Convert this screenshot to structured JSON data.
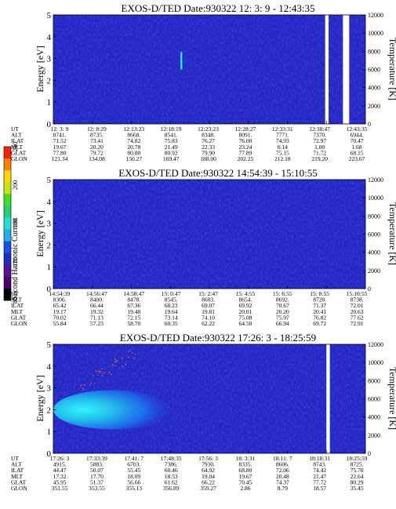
{
  "chart_data": {
    "type": "heatmap",
    "colorbar": {
      "label": "Second Harmonic Current",
      "ticks": [
        "80",
        "120",
        "160",
        "200",
        "240"
      ],
      "range": [
        80,
        240
      ],
      "colors": [
        "#000000",
        "#4b0070",
        "#5a0f96",
        "#1e2cc8",
        "#1a4fe8",
        "#1fb0e8",
        "#22e0d8",
        "#25d070",
        "#3fe020",
        "#c8e610",
        "#ffd700",
        "#ff8000",
        "#ff2000"
      ]
    },
    "panels": [
      {
        "title": "EXOS-D/TED   Date:930322  12: 3: 9 - 12:43:35",
        "ylabel": "Energy [eV]",
        "y2label": "Temperature [K]",
        "ylim": [
          0,
          5
        ],
        "y2lim": [
          0,
          12000
        ],
        "yticks": [
          "0",
          "1",
          "2",
          "3",
          "4",
          "5"
        ],
        "y2ticks": [
          "0",
          "2000",
          "4000",
          "6000",
          "8000",
          "10000",
          "12000"
        ],
        "gaps": [
          [
            0.871,
            0.882
          ],
          [
            0.928,
            0.948
          ]
        ],
        "features": [
          {
            "kind": "spike",
            "x": 0.41,
            "y0": 2.5,
            "y1": 3.3,
            "value": 190
          }
        ],
        "background_value": 124,
        "rows": [
          {
            "name": "UT",
            "values": [
              "12: 3: 9",
              "12: 8:29",
              "12:13:23",
              "12:18:19",
              "12:23:23",
              "12:28:27",
              "12:33:31",
              "12:38:47",
              "12:43:35"
            ]
          },
          {
            "name": "ALT",
            "values": [
              "8741.",
              "8735.",
              "8668.",
              "8541.",
              "8348.",
              "8091.",
              "7771.",
              "7370.",
              "6944."
            ]
          },
          {
            "name": "ILAT",
            "values": [
              "71.52",
              "73.41",
              "74.82",
              "75.83",
              "76.27",
              "76.00",
              "74.93",
              "72.97",
              "70.47"
            ]
          },
          {
            "name": "MLT",
            "values": [
              "19.67",
              "20.20",
              "20.78",
              "21.49",
              "22.33",
              "23.24",
              "0.14",
              "1.00",
              "1.68"
            ]
          },
          {
            "name": "GLAT",
            "values": [
              "77.80",
              "79.72",
              "80.80",
              "80.92",
              "79.90",
              "77.89",
              "75.15",
              "71.72",
              "68.15"
            ]
          },
          {
            "name": "GLON",
            "values": [
              "121.34",
              "134.08",
              "150.27",
              "169.47",
              "188.00",
              "202.25",
              "212.18",
              "219.20",
              "223.67"
            ]
          }
        ]
      },
      {
        "title": "EXOS-D/TED   Date:930322  14:54:39 - 15:10:55",
        "ylabel": "Energy [eV]",
        "y2label": "Temperature [K]",
        "ylim": [
          0,
          5
        ],
        "y2lim": [
          0,
          12000
        ],
        "yticks": [
          "0",
          "1",
          "2",
          "3",
          "4",
          "5"
        ],
        "y2ticks": [
          "0",
          "2000",
          "4000",
          "6000",
          "8000",
          "10000",
          "12000"
        ],
        "gaps": [],
        "features": [],
        "background_value": 124,
        "rows": [
          {
            "name": "UT",
            "values": [
              "14:54:39",
              "14:56:47",
              "14:58:47",
              "15: 0:47",
              "15: 2:47",
              "15: 4:55",
              "15: 6:55",
              "15: 8:55",
              "15:10:55"
            ]
          },
          {
            "name": "ALT",
            "values": [
              "8306.",
              "8400.",
              "8478.",
              "8545.",
              "8603.",
              "8654.",
              "8692.",
              "8720.",
              "8738."
            ]
          },
          {
            "name": "ILAT",
            "values": [
              "65.42",
              "66.44",
              "67.36",
              "68.23",
              "69.07",
              "69.92",
              "70.67",
              "71.37",
              "72.01"
            ]
          },
          {
            "name": "MLT",
            "values": [
              "19.17",
              "19.32",
              "19.48",
              "19.64",
              "19.81",
              "20.01",
              "20.20",
              "20.41",
              "20.63"
            ]
          },
          {
            "name": "GLAT",
            "values": [
              "70.02",
              "71.13",
              "72.15",
              "73.14",
              "74.10",
              "75.08",
              "75.97",
              "76.82",
              "77.62"
            ]
          },
          {
            "name": "GLON",
            "values": [
              "55.84",
              "57.23",
              "58.70",
              "60.35",
              "62.22",
              "64.50",
              "66.94",
              "69.72",
              "72.91"
            ]
          }
        ]
      },
      {
        "title": "EXOS-D/TED   Date:930322  17:26: 3 - 18:25:59",
        "ylabel": "Energy [eV]",
        "y2label": "Temperature [K]",
        "ylim": [
          0,
          5
        ],
        "y2lim": [
          0,
          12000
        ],
        "yticks": [
          "0",
          "1",
          "2",
          "3",
          "4",
          "5"
        ],
        "y2ticks": [
          "0",
          "2000",
          "4000",
          "6000",
          "8000",
          "10000",
          "12000"
        ],
        "gaps": [
          [
            0.875,
            0.886
          ]
        ],
        "features": [
          {
            "kind": "blob",
            "x0": 0.0,
            "x1": 0.38,
            "ycenter": 2.0,
            "halfwidth": 0.9,
            "value": 160
          },
          {
            "kind": "dots",
            "x0": 0.08,
            "x1": 0.26,
            "y0": 2.6,
            "y1": 4.8,
            "value": 230
          }
        ],
        "background_value": 124,
        "rows": [
          {
            "name": "UT",
            "values": [
              "17:26: 3",
              "17:33:39",
              "17:41: 7",
              "17:48:35",
              "17:56: 3",
              "18: 3:31",
              "18:11: 7",
              "18:18:31",
              "18:25:59"
            ]
          },
          {
            "name": "ALT",
            "values": [
              "4915.",
              "5883.",
              "6703.",
              "7386.",
              "7930.",
              "8335.",
              "8606.",
              "8743.",
              "8725."
            ]
          },
          {
            "name": "ILAT",
            "values": [
              "44.47",
              "50.07",
              "55.45",
              "60.46",
              "64.92",
              "68.80",
              "72.06",
              "74.42",
              "75.70"
            ]
          },
          {
            "name": "MLT",
            "values": [
              "17.32",
              "17.70",
              "18.09",
              "18.53",
              "19.04",
              "19.67",
              "20.48",
              "21.47",
              "22.64"
            ]
          },
          {
            "name": "GLAT",
            "values": [
              "45.95",
              "51.37",
              "56.66",
              "61.62",
              "66.22",
              "70.45",
              "74.37",
              "77.72",
              "80.29"
            ]
          },
          {
            "name": "GLON",
            "values": [
              "351.55",
              "353.55",
              "355.13",
              "356.89",
              "359.27",
              "2.86",
              "8.79",
              "18.57",
              "35.45"
            ]
          }
        ]
      }
    ]
  }
}
